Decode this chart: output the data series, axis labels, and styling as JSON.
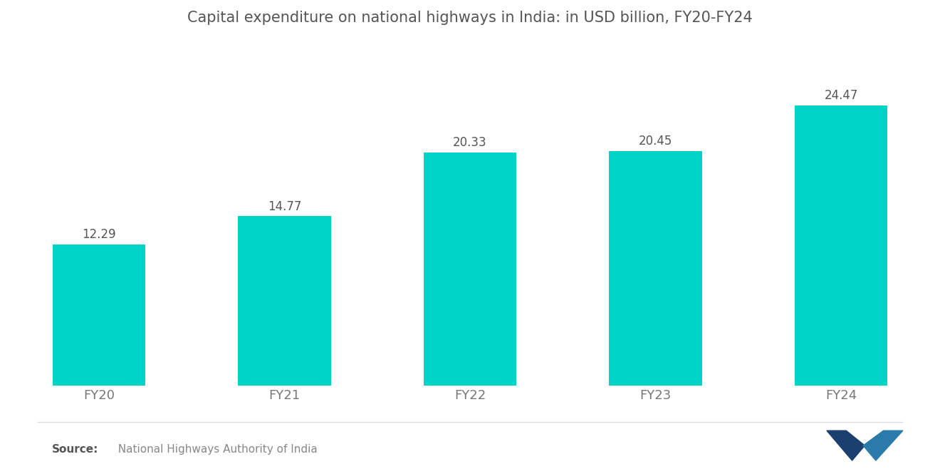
{
  "title": "Capital expenditure on national highways in India: in USD billion, FY20-FY24",
  "categories": [
    "FY20",
    "FY21",
    "FY22",
    "FY23",
    "FY24"
  ],
  "values": [
    12.29,
    14.77,
    20.33,
    20.45,
    24.47
  ],
  "bar_color": "#00D4C8",
  "background_color": "#FFFFFF",
  "title_color": "#555555",
  "label_color": "#555555",
  "xtick_color": "#777777",
  "source_bold": "Source:",
  "source_text": "  National Highways Authority of India",
  "source_color": "#888888",
  "title_fontsize": 15,
  "label_fontsize": 12,
  "xtick_fontsize": 13,
  "source_fontsize": 11,
  "bar_width": 0.5,
  "ylim": [
    0,
    30
  ]
}
